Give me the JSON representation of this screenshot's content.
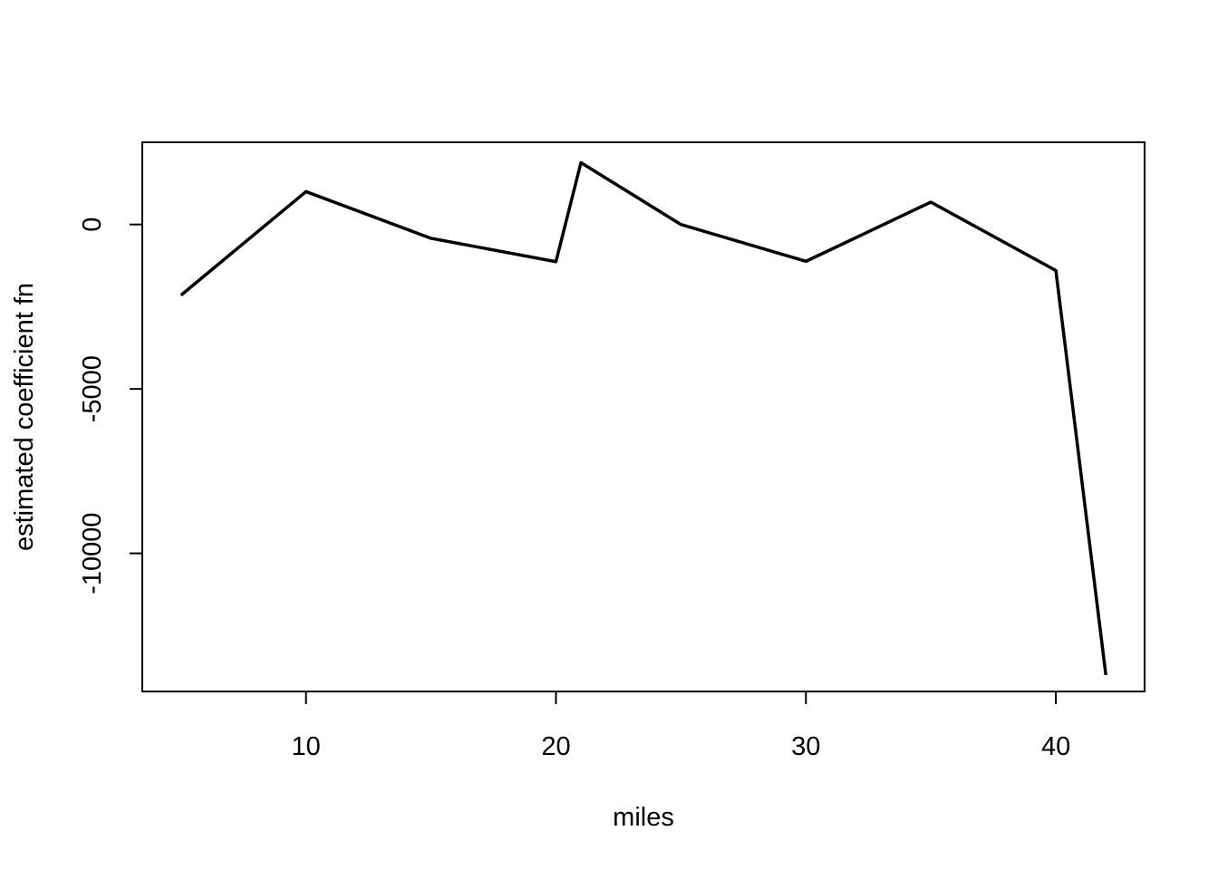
{
  "chart_data": {
    "type": "line",
    "title": "",
    "xlabel": "miles",
    "ylabel": "estimated coefficient fn",
    "xlim": [
      3.45,
      43.55
    ],
    "ylim": [
      -14200,
      2500
    ],
    "x_ticks": [
      10,
      20,
      30,
      40
    ],
    "x_tick_labels": [
      "10",
      "20",
      "30",
      "40"
    ],
    "y_ticks": [
      0,
      -5000,
      -10000
    ],
    "y_tick_labels": [
      "0",
      "-5000",
      "-10000"
    ],
    "grid": false,
    "legend": "none",
    "line_color": "#000000",
    "series": [
      {
        "x": [
          5,
          10,
          15,
          20,
          21,
          25,
          30,
          35,
          40,
          42
        ],
        "values": [
          -2150,
          1000,
          -420,
          -1130,
          1880,
          0,
          -1120,
          680,
          -1400,
          -13700
        ]
      }
    ]
  }
}
